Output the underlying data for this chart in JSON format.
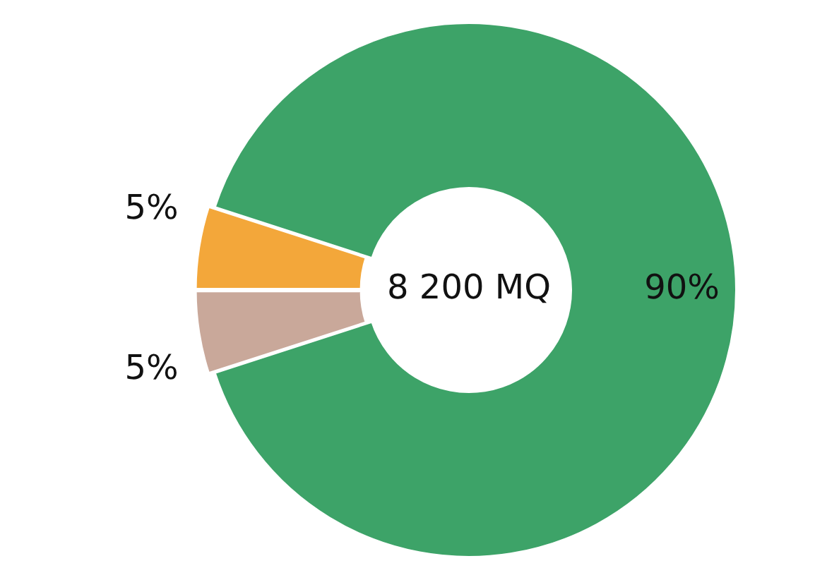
{
  "chart_data": {
    "type": "donut",
    "categories": [
      null,
      null,
      null
    ],
    "values": [
      90,
      5,
      5
    ],
    "colors": [
      "#3da368",
      "#c9a89a",
      "#f3a73a"
    ],
    "value_labels": [
      "90%",
      "5%",
      "5%"
    ],
    "annotations": [
      "8 200 MQ"
    ],
    "legend": false
  }
}
